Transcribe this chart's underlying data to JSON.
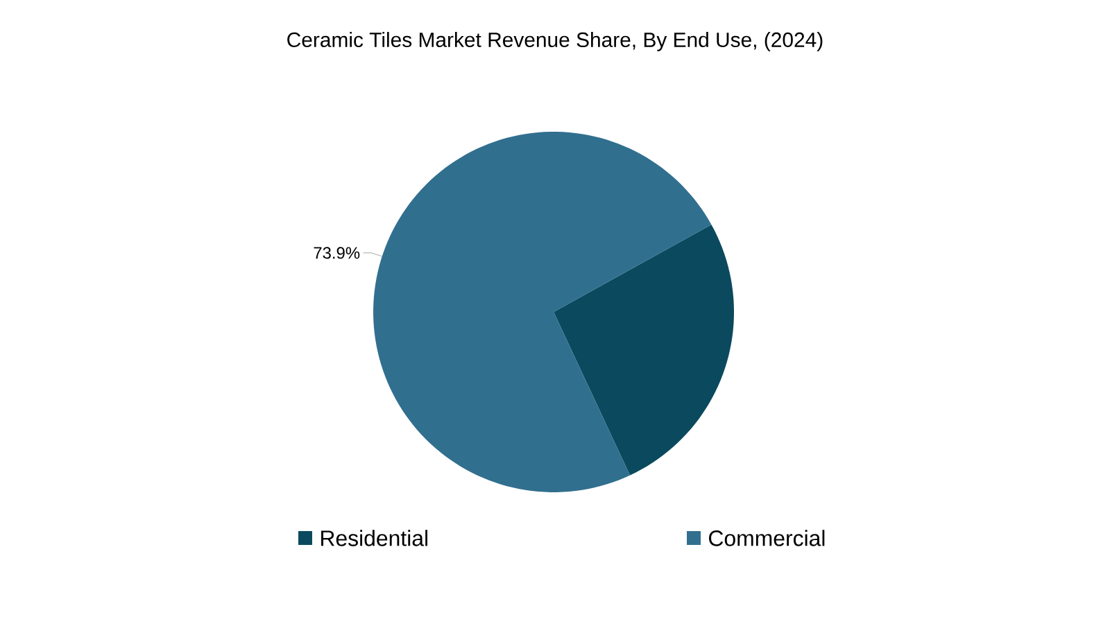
{
  "chart_data": {
    "type": "pie",
    "title": "Ceramic Tiles Market Revenue Share, By End Use, (2024)",
    "categories": [
      "Residential",
      "Commercial"
    ],
    "values": [
      26.1,
      73.9
    ],
    "colors": [
      "#0b4a5e",
      "#316f8f"
    ],
    "value_labels": [
      null,
      "73.9%"
    ],
    "legend": "bottom"
  }
}
